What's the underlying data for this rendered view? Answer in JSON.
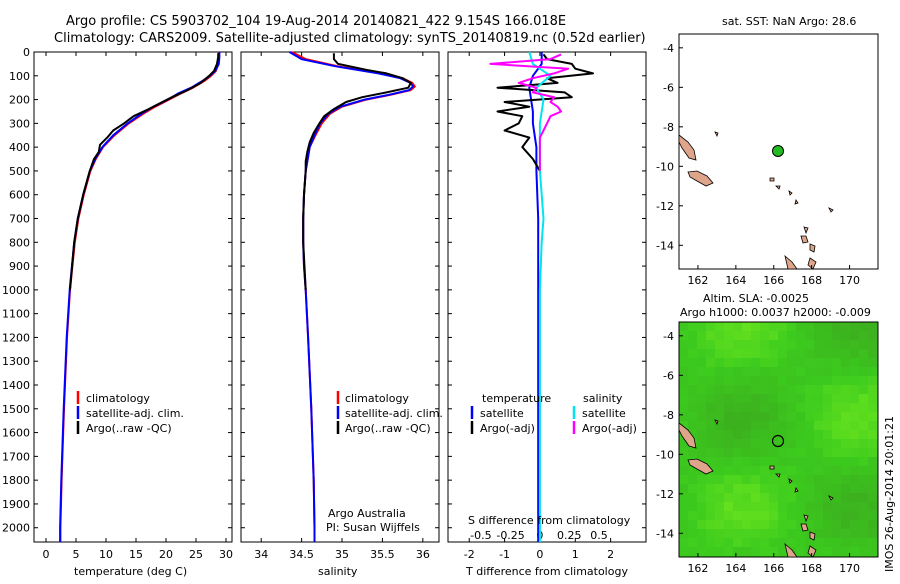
{
  "header": {
    "line1": "Argo profile: CS 5903702_104 19-Aug-2014 20140821_422 9.154S 166.018E",
    "line2": "Climatology: CARS2009. Satellite-adjusted climatology: synTS_20140819.nc (0.52d earlier)"
  },
  "colors": {
    "climatology": "#ff0000",
    "satellite": "#0000ff",
    "argo": "#000000",
    "sal_satellite": "#00e5ee",
    "sal_argo": "#ff00ff",
    "land": "#dfa58a",
    "marker_sst": "#22bb22"
  },
  "map_sst": {
    "title": "sat. SST: NaN Argo: 28.6",
    "xticks": [
      "162",
      "164",
      "166",
      "168",
      "170"
    ],
    "yticks": [
      "-4",
      "-6",
      "-8",
      "-10",
      "-12",
      "-14"
    ]
  },
  "map_sla": {
    "title1": "Altim. SLA: -0.0025",
    "title2": "Argo h1000: 0.0037 h2000: -0.009",
    "xticks": [
      "162",
      "164",
      "166",
      "168",
      "170"
    ],
    "yticks": [
      "-4",
      "-6",
      "-8",
      "-10",
      "-12",
      "-14"
    ]
  },
  "side_stamp": "IMOS 26-Aug-2014 20:01:21",
  "note": {
    "line1": "Argo Australia",
    "line2": "PI: Susan Wijffels"
  },
  "chart_data": [
    {
      "type": "line",
      "xlabel": "temperature (deg C)",
      "ylabel": "",
      "xticks": [
        0,
        5,
        10,
        15,
        20,
        25,
        30
      ],
      "xlim": [
        -2,
        31
      ],
      "ylim": [
        2060,
        0
      ],
      "yticks": [
        0,
        100,
        200,
        300,
        400,
        500,
        600,
        700,
        800,
        900,
        1000,
        1100,
        1200,
        1300,
        1400,
        1500,
        1600,
        1700,
        1800,
        1900,
        2000
      ],
      "legend": [
        "climatology",
        "satellite-adj. clim.",
        "Argo(..raw -QC)"
      ],
      "series": [
        {
          "name": "climatology",
          "color": "#ff0000",
          "depth": [
            0,
            20,
            50,
            80,
            100,
            120,
            150,
            175,
            200,
            230,
            260,
            300,
            350,
            400,
            450,
            500,
            600,
            700,
            800,
            1000,
            1200,
            1500,
            1800,
            2000,
            2060
          ],
          "values": [
            28.8,
            28.8,
            28.7,
            28.3,
            27.5,
            26.5,
            24.5,
            22.4,
            20.5,
            18.2,
            16.2,
            13.8,
            11.4,
            9.5,
            8.3,
            7.4,
            6.3,
            5.4,
            4.8,
            4.0,
            3.5,
            3.0,
            2.6,
            2.4,
            2.4
          ]
        },
        {
          "name": "satellite-adj. clim.",
          "color": "#0000ff",
          "depth": [
            0,
            20,
            50,
            80,
            100,
            120,
            150,
            175,
            200,
            230,
            260,
            300,
            350,
            400,
            450,
            500,
            600,
            700,
            800,
            1000,
            1200,
            1500,
            1800,
            2000,
            2060
          ],
          "values": [
            28.9,
            28.9,
            28.8,
            28.2,
            27.3,
            26.2,
            24.2,
            22.0,
            20.3,
            17.9,
            15.9,
            13.6,
            11.2,
            9.4,
            8.2,
            7.3,
            6.2,
            5.3,
            4.7,
            3.95,
            3.45,
            2.95,
            2.55,
            2.35,
            2.35
          ]
        },
        {
          "name": "Argo(..raw -QC)",
          "color": "#000000",
          "depth": [
            5,
            20,
            50,
            80,
            100,
            130,
            160,
            190,
            210,
            240,
            270,
            300,
            330,
            360,
            390,
            420,
            450,
            500,
            600,
            700,
            800,
            1000
          ],
          "values": [
            28.7,
            28.7,
            28.5,
            28.0,
            27.2,
            25.8,
            23.6,
            21.0,
            19.4,
            17.1,
            14.6,
            13.0,
            11.2,
            10.2,
            9.0,
            8.8,
            8.0,
            7.3,
            6.2,
            5.3,
            4.7,
            4.0
          ]
        }
      ]
    },
    {
      "type": "line",
      "xlabel": "salinity",
      "ylabel": "",
      "xticks": [
        34,
        34.5,
        35,
        35.5,
        36
      ],
      "xlim": [
        33.75,
        36.2
      ],
      "ylim": [
        2060,
        0
      ],
      "legend": [
        "climatology",
        "satellite-adj. clim.",
        "Argo(..raw -QC)"
      ],
      "series": [
        {
          "name": "climatology",
          "color": "#ff0000",
          "depth": [
            0,
            30,
            60,
            90,
            110,
            130,
            145,
            160,
            180,
            200,
            230,
            260,
            300,
            350,
            400,
            500,
            600,
            700,
            800,
            900,
            1000,
            1200,
            1500,
            1800,
            2000,
            2060
          ],
          "values": [
            34.38,
            34.55,
            34.95,
            35.5,
            35.75,
            35.87,
            35.9,
            35.85,
            35.6,
            35.3,
            35.0,
            34.85,
            34.75,
            34.67,
            34.6,
            34.55,
            34.53,
            34.52,
            34.52,
            34.53,
            34.55,
            34.58,
            34.62,
            34.65,
            34.66,
            34.66
          ]
        },
        {
          "name": "satellite-adj. clim.",
          "color": "#0000ff",
          "depth": [
            0,
            30,
            60,
            90,
            110,
            130,
            145,
            160,
            180,
            200,
            230,
            260,
            300,
            350,
            400,
            500,
            600,
            700,
            800,
            900,
            1000,
            1200,
            1500,
            1800,
            2000,
            2060
          ],
          "values": [
            34.35,
            34.5,
            34.92,
            35.45,
            35.72,
            35.85,
            35.88,
            35.83,
            35.58,
            35.28,
            34.98,
            34.83,
            34.73,
            34.66,
            34.6,
            34.55,
            34.53,
            34.52,
            34.52,
            34.53,
            34.55,
            34.58,
            34.62,
            34.65,
            34.66,
            34.66
          ]
        },
        {
          "name": "Argo(..raw -QC)",
          "color": "#000000",
          "depth": [
            5,
            30,
            50,
            75,
            90,
            110,
            130,
            150,
            170,
            190,
            210,
            240,
            270,
            300,
            340,
            380,
            420,
            460,
            500,
            600,
            700,
            800,
            1000
          ],
          "values": [
            34.9,
            34.9,
            34.95,
            35.3,
            35.55,
            35.75,
            35.85,
            35.82,
            35.55,
            35.25,
            35.05,
            34.9,
            34.78,
            34.72,
            34.65,
            34.6,
            34.57,
            34.55,
            34.55,
            34.53,
            34.52,
            34.52,
            34.55
          ]
        }
      ]
    },
    {
      "type": "line",
      "xlabel": "T difference from climatology",
      "xlabel2": "S difference from climatology",
      "xticks": [
        -2,
        -1,
        0,
        1,
        2
      ],
      "xticks_s": [
        "-0.5",
        "-0.25",
        "0",
        "0.25",
        "0.5"
      ],
      "xlim": [
        -2.6,
        3.0
      ],
      "ylim": [
        2060,
        0
      ],
      "legend_t_title": "temperature",
      "legend_s_title": "salinity",
      "legend": [
        "satellite",
        "Argo(-adj)",
        "satellite",
        "Argo(-adj)"
      ],
      "series": [
        {
          "name": "satellite",
          "color": "#0000ff",
          "depth": [
            0,
            50,
            100,
            150,
            200,
            250,
            300,
            400,
            500,
            700,
            1000,
            1500,
            2060
          ],
          "values": [
            0.05,
            0.05,
            -0.2,
            -0.3,
            -0.25,
            -0.2,
            -0.2,
            -0.1,
            -0.1,
            -0.05,
            -0.05,
            -0.05,
            -0.05
          ]
        },
        {
          "name": "Argo(-adj)",
          "color": "#000000",
          "depth": [
            10,
            30,
            50,
            70,
            90,
            110,
            130,
            150,
            170,
            190,
            210,
            230,
            250,
            270,
            300,
            330,
            360,
            400,
            450,
            500
          ],
          "values": [
            0.1,
            0.2,
            0.9,
            1.0,
            1.5,
            0.2,
            0.5,
            -1.2,
            0.7,
            0.9,
            -1.0,
            -0.3,
            -1.2,
            -0.5,
            -0.6,
            -1.0,
            -0.3,
            -0.5,
            -0.2,
            0.0
          ]
        },
        {
          "name": "satellite",
          "color": "#00e5ee",
          "depth": [
            0,
            50,
            100,
            150,
            200,
            300,
            400,
            500,
            700,
            800,
            1000,
            1500,
            2060
          ],
          "values": [
            -0.3,
            -0.2,
            0.3,
            -0.1,
            0.1,
            0.0,
            0.0,
            0.0,
            0.1,
            0.05,
            0.0,
            0.0,
            0.0
          ]
        },
        {
          "name": "Argo(-adj)",
          "color": "#ff00ff",
          "depth": [
            10,
            30,
            50,
            70,
            90,
            110,
            130,
            150,
            170,
            190,
            210,
            230,
            250,
            270,
            300,
            330,
            360,
            400,
            450,
            500
          ],
          "values": [
            0.6,
            0.3,
            -1.4,
            0.8,
            0.4,
            -0.2,
            -0.6,
            -0.1,
            -0.2,
            0.4,
            0.3,
            0.5,
            0.6,
            0.3,
            0.2,
            0.1,
            0.0,
            0.0,
            0.0,
            0.0
          ]
        }
      ]
    }
  ]
}
